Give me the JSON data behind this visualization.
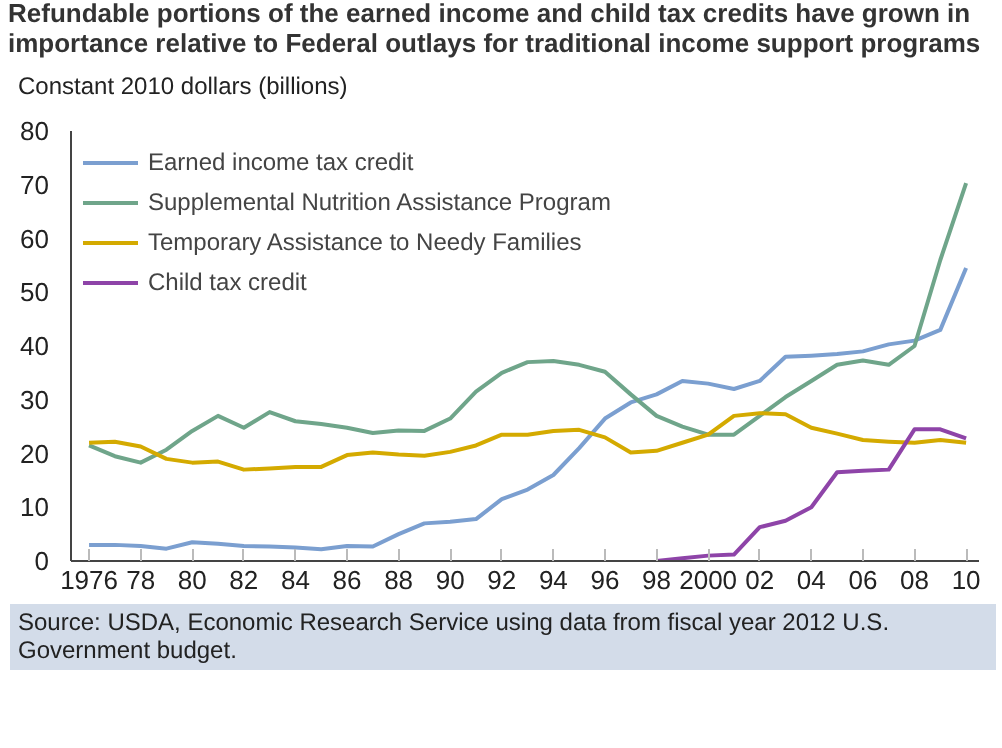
{
  "chart_data": {
    "type": "line",
    "title": "Refundable portions of the earned income and child tax credits have grown in importance relative to Federal outlays for traditional income support programs",
    "ylabel": "Constant 2010 dollars (billions)",
    "x": [
      1976,
      1977,
      1978,
      1979,
      1980,
      1981,
      1982,
      1983,
      1984,
      1985,
      1986,
      1987,
      1988,
      1989,
      1990,
      1991,
      1992,
      1993,
      1994,
      1995,
      1996,
      1997,
      1998,
      1999,
      2000,
      2001,
      2002,
      2003,
      2004,
      2005,
      2006,
      2007,
      2008,
      2009,
      2010
    ],
    "series": [
      {
        "name": "Earned income tax credit",
        "color": "#7b9fd0",
        "values": [
          3,
          3,
          2.8,
          2.3,
          3.5,
          3.2,
          2.8,
          2.7,
          2.5,
          2.2,
          2.8,
          2.7,
          5,
          7,
          7.3,
          7.8,
          11.5,
          13.3,
          16,
          21,
          26.5,
          29.5,
          31,
          33.5,
          33,
          32,
          33.5,
          38,
          38.2,
          38.5,
          39,
          40.3,
          41,
          43,
          54.5
        ]
      },
      {
        "name": "Supplemental Nutrition Assistance Program",
        "color": "#6fa58a",
        "values": [
          21.5,
          19.5,
          18.3,
          20.7,
          24.2,
          27,
          24.8,
          27.7,
          26,
          25.5,
          24.8,
          23.8,
          24.3,
          24.2,
          26.5,
          31.5,
          35,
          37,
          37.2,
          36.5,
          35.2,
          31,
          27,
          25,
          23.5,
          23.5,
          27,
          30.5,
          33.5,
          36.5,
          37.3,
          36.5,
          40,
          56,
          70.3
        ]
      },
      {
        "name": "Temporary Assistance to Needy Families",
        "color": "#d4aa00",
        "values": [
          22,
          22.2,
          21.3,
          19,
          18.3,
          18.5,
          17,
          17.2,
          17.5,
          17.5,
          19.7,
          20.2,
          19.8,
          19.6,
          20.3,
          21.5,
          23.5,
          23.5,
          24.2,
          24.4,
          23,
          20.2,
          20.5,
          22,
          23.5,
          27,
          27.5,
          27.3,
          24.8,
          23.7,
          22.5,
          22.2,
          22,
          22.5,
          22
        ]
      },
      {
        "name": "Child tax credit",
        "color": "#8e44a8",
        "values": [
          null,
          null,
          null,
          null,
          null,
          null,
          null,
          null,
          null,
          null,
          null,
          null,
          null,
          null,
          null,
          null,
          null,
          null,
          null,
          null,
          null,
          null,
          0,
          0.5,
          1,
          1.2,
          6.3,
          7.5,
          10,
          16.5,
          16.8,
          17,
          24.5,
          24.5,
          22.8
        ]
      }
    ],
    "xlim": [
      1975.3,
      2010.5
    ],
    "ylim": [
      0,
      80
    ],
    "xticks": [
      {
        "value": 1976,
        "label": "1976"
      },
      {
        "value": 1978,
        "label": "78"
      },
      {
        "value": 1980,
        "label": "80"
      },
      {
        "value": 1982,
        "label": "82"
      },
      {
        "value": 1984,
        "label": "84"
      },
      {
        "value": 1986,
        "label": "86"
      },
      {
        "value": 1988,
        "label": "88"
      },
      {
        "value": 1990,
        "label": "90"
      },
      {
        "value": 1992,
        "label": "92"
      },
      {
        "value": 1994,
        "label": "94"
      },
      {
        "value": 1996,
        "label": "96"
      },
      {
        "value": 1998,
        "label": "98"
      },
      {
        "value": 2000,
        "label": "2000"
      },
      {
        "value": 2002,
        "label": "02"
      },
      {
        "value": 2004,
        "label": "04"
      },
      {
        "value": 2006,
        "label": "06"
      },
      {
        "value": 2008,
        "label": "08"
      },
      {
        "value": 2010,
        "label": "10"
      }
    ],
    "yticks": [
      0,
      10,
      20,
      30,
      40,
      50,
      60,
      70,
      80
    ],
    "grid": false,
    "legend": "top left",
    "line_style": "solid",
    "marker": "none",
    "annotations": [
      "Source: USDA, Economic Research Service using data from fiscal year 2012 U.S. Government budget."
    ]
  }
}
